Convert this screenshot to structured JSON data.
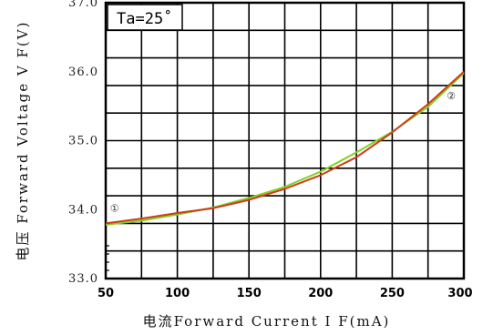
{
  "chart_data": {
    "type": "line",
    "xlabel": "电流Forward Current I F(mA)",
    "ylabel": "电压 Forward Voltage V F(V)",
    "annotation": "Ta=25˚",
    "xlim": [
      50,
      300
    ],
    "ylim": [
      33.0,
      37.0
    ],
    "x_ticks": [
      50,
      100,
      150,
      200,
      250,
      300
    ],
    "x_tick_labels": [
      "50",
      "100",
      "150",
      "200",
      "250",
      "300"
    ],
    "y_ticks": [
      33.0,
      34.0,
      35.0,
      36.0,
      37.0
    ],
    "y_tick_labels": [
      "33.0",
      "34.0",
      "35.0",
      "36.0",
      "37.0"
    ],
    "grid": true,
    "series": [
      {
        "marker": "①",
        "color": "#7ed321",
        "x": [
          50,
          75,
          100,
          125,
          150,
          175,
          200,
          225,
          250,
          275,
          300
        ],
        "y": [
          33.78,
          33.84,
          33.93,
          34.03,
          34.17,
          34.33,
          34.55,
          34.83,
          35.13,
          35.49,
          35.98
        ]
      },
      {
        "marker": "②",
        "color": "#d0391a",
        "x": [
          50,
          75,
          100,
          125,
          150,
          175,
          200,
          225,
          250,
          275,
          300
        ],
        "y": [
          33.8,
          33.87,
          33.95,
          34.02,
          34.14,
          34.3,
          34.5,
          34.76,
          35.12,
          35.53,
          36.0
        ]
      }
    ],
    "circle_labels": [
      "①",
      "②"
    ]
  }
}
